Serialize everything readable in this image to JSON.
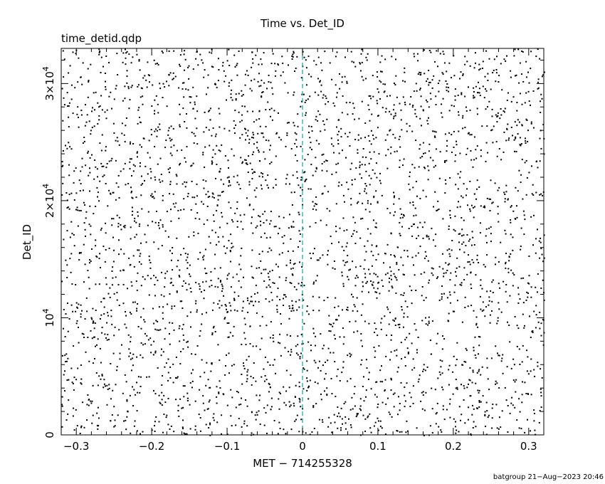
{
  "chart_data": {
    "type": "scatter",
    "title": "Time vs. Det_ID",
    "subtitle": "time_detid.qdp",
    "xlabel": "MET − 714255328",
    "ylabel": "Det_ID",
    "xlim": [
      -0.32,
      0.32
    ],
    "ylim": [
      0,
      33000
    ],
    "x_ticks": [
      {
        "value": -0.3,
        "label": "−0.3"
      },
      {
        "value": -0.2,
        "label": "−0.2"
      },
      {
        "value": -0.1,
        "label": "−0.1"
      },
      {
        "value": 0,
        "label": "0"
      },
      {
        "value": 0.1,
        "label": "0.1"
      },
      {
        "value": 0.2,
        "label": "0.2"
      },
      {
        "value": 0.3,
        "label": "0.3"
      }
    ],
    "y_ticks": [
      {
        "value": 0,
        "base": "0",
        "exp": ""
      },
      {
        "value": 10000,
        "base": "10",
        "exp": "4"
      },
      {
        "value": 20000,
        "base": "2×10",
        "exp": "4"
      },
      {
        "value": 30000,
        "base": "3×10",
        "exp": "4"
      }
    ],
    "reference_line": {
      "x": 0,
      "style": "dashed",
      "color": "#1aa0a0"
    },
    "point_color": "#000000",
    "grid": false,
    "n_points_approx": 3600,
    "footer": "batgroup 21−Aug−2023 20:46"
  }
}
